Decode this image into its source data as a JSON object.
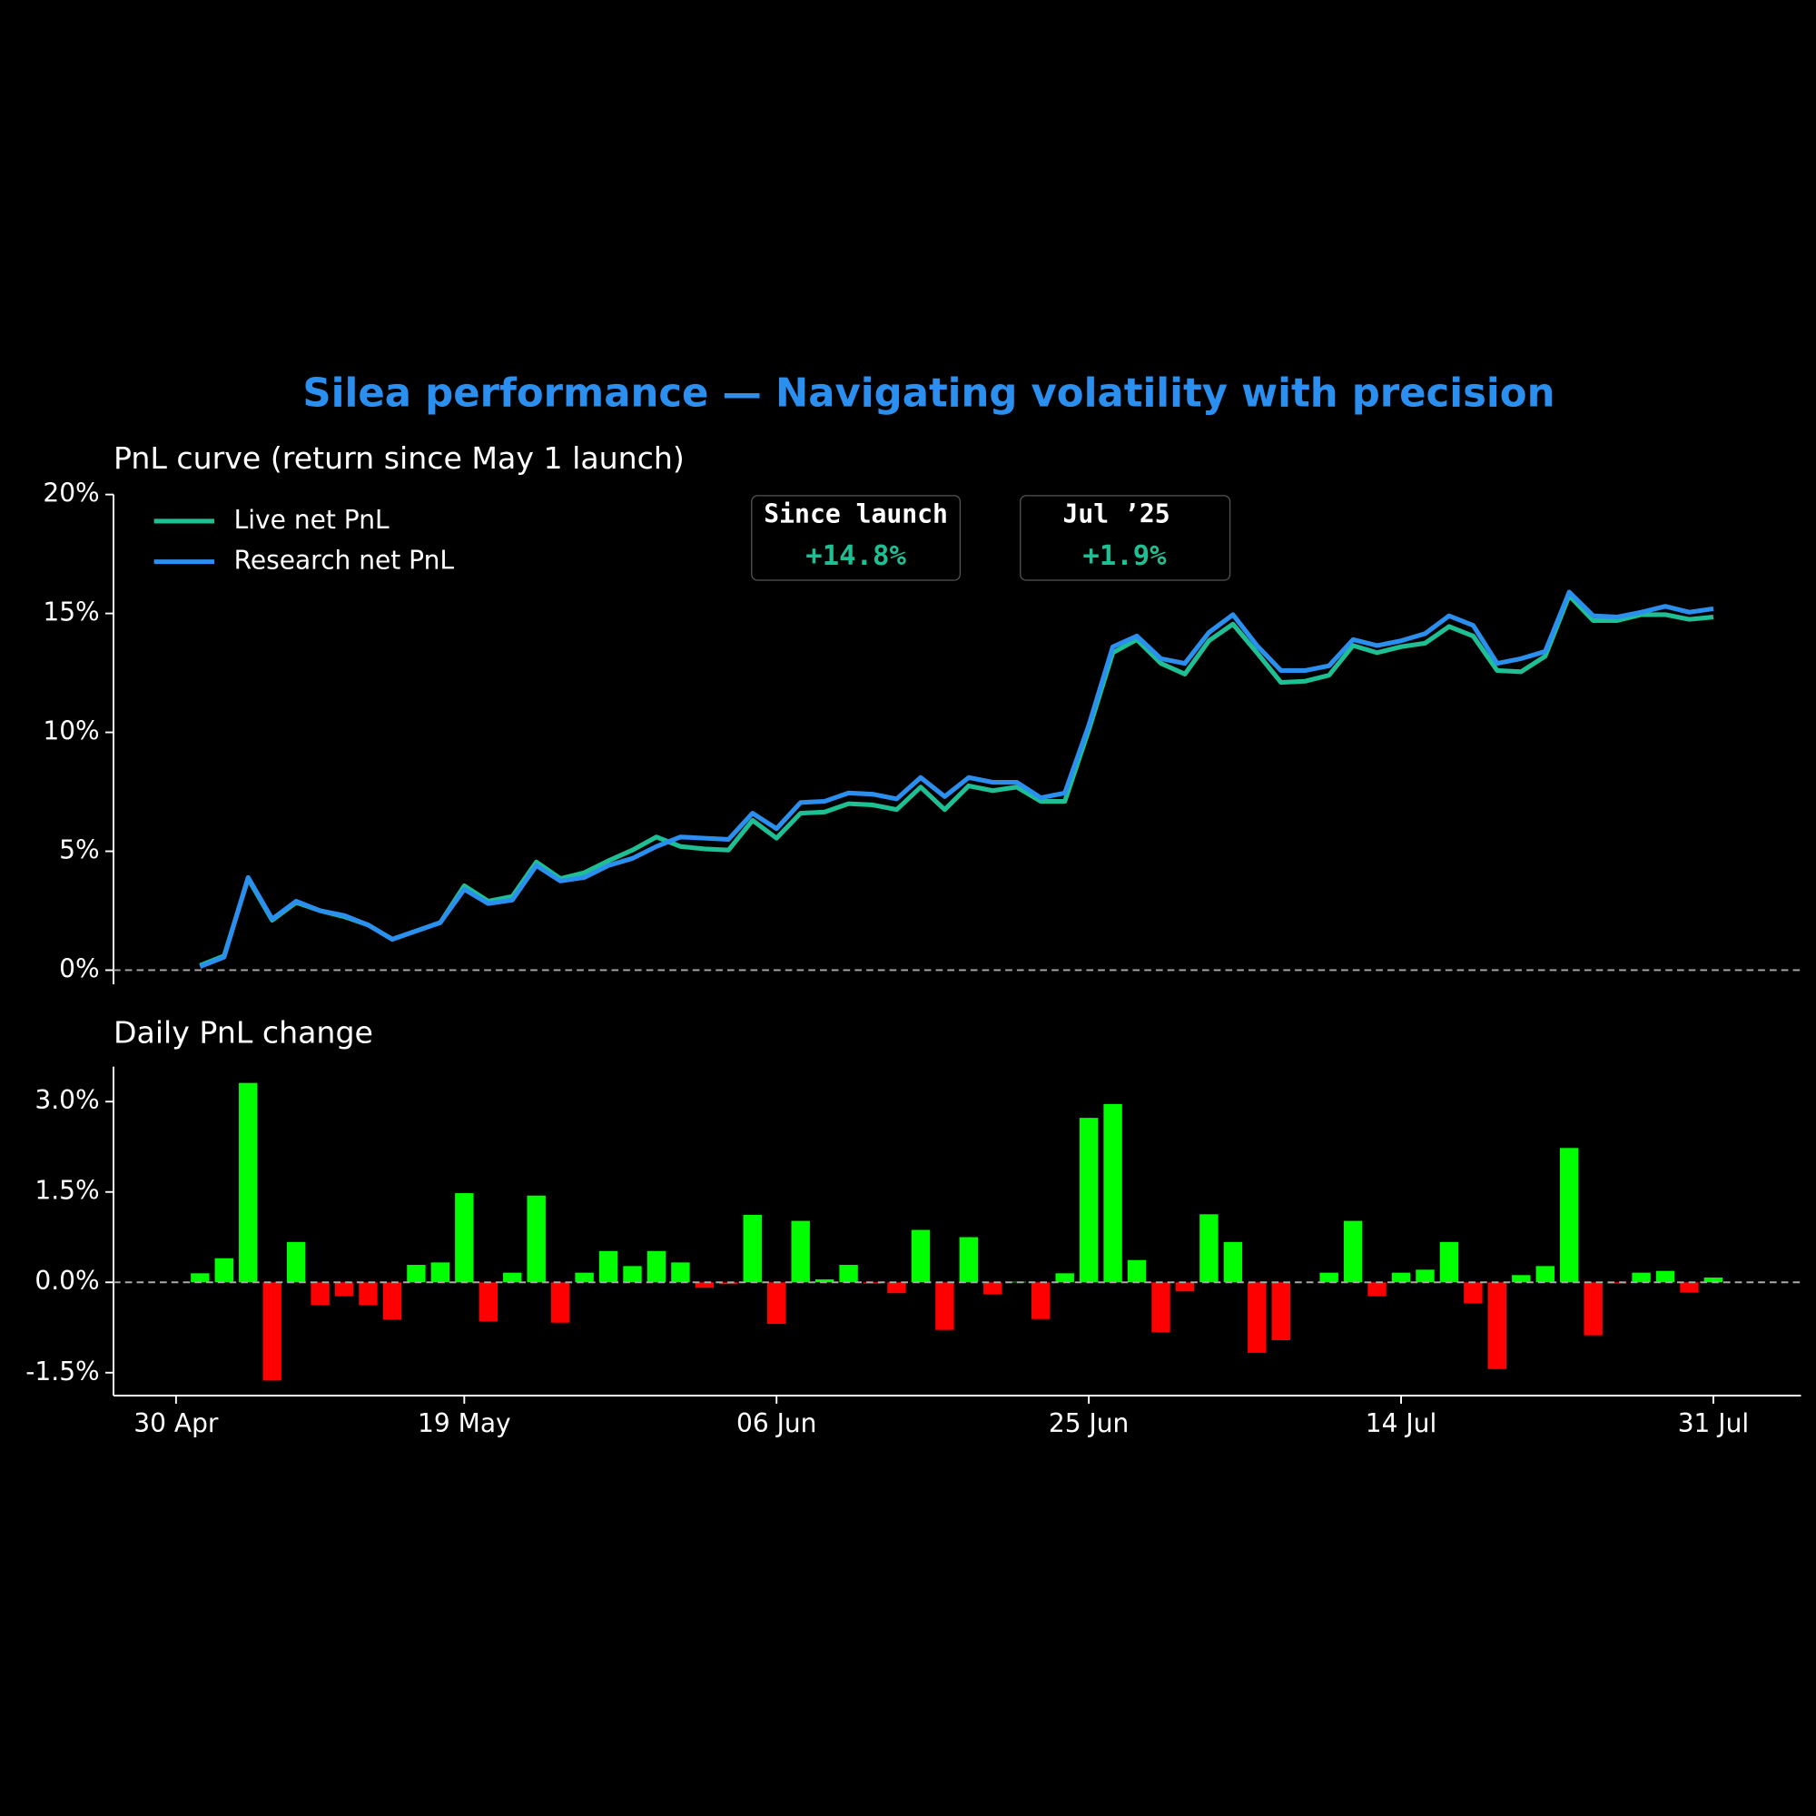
{
  "title": "Silea performance — Navigating volatility with precision",
  "chart_data": [
    {
      "type": "line",
      "title": "PnL curve (return since May 1 launch)",
      "ylim": [
        -0.6,
        20
      ],
      "yticks": [
        {
          "value": 0,
          "label": "0%"
        },
        {
          "value": 5,
          "label": "5%"
        },
        {
          "value": 10,
          "label": "10%"
        },
        {
          "value": 15,
          "label": "15%"
        },
        {
          "value": 20,
          "label": "20%"
        }
      ],
      "zero_line": true,
      "legend": "upper left",
      "annotations": [
        {
          "label": "Since launch",
          "value": "+14.8%"
        },
        {
          "label": "Jul ’25",
          "value": "+1.9%"
        }
      ],
      "series": [
        {
          "name": "Live net PnL",
          "color": "#1fbf94",
          "values": [
            null,
            0.2,
            0.6,
            3.85,
            2.1,
            2.85,
            2.5,
            2.25,
            1.9,
            1.3,
            1.65,
            2.0,
            3.55,
            2.9,
            3.1,
            4.55,
            3.85,
            4.1,
            4.6,
            5.05,
            5.6,
            5.2,
            5.1,
            5.05,
            6.3,
            5.55,
            6.6,
            6.65,
            7.0,
            6.95,
            6.75,
            7.7,
            6.75,
            7.75,
            7.55,
            7.7,
            7.1,
            7.1,
            10.1,
            13.35,
            13.9,
            12.9,
            12.45,
            13.85,
            14.55,
            13.35,
            12.1,
            12.15,
            12.4,
            13.65,
            13.35,
            13.6,
            13.75,
            14.45,
            14.05,
            12.6,
            12.55,
            13.2,
            15.75,
            14.7,
            14.7,
            14.95,
            14.95,
            14.75,
            14.85
          ]
        },
        {
          "name": "Research net PnL",
          "color": "#2b8ff0",
          "values": [
            null,
            0.15,
            0.55,
            3.9,
            2.15,
            2.9,
            2.5,
            2.3,
            1.9,
            1.3,
            1.65,
            2.0,
            3.4,
            2.8,
            2.95,
            4.4,
            3.75,
            3.9,
            4.4,
            4.7,
            5.2,
            5.6,
            5.55,
            5.5,
            6.6,
            5.95,
            7.05,
            7.1,
            7.45,
            7.4,
            7.2,
            8.1,
            7.3,
            8.1,
            7.9,
            7.9,
            7.25,
            7.45,
            10.3,
            13.6,
            14.05,
            13.1,
            12.9,
            14.2,
            14.95,
            13.65,
            12.6,
            12.6,
            12.8,
            13.9,
            13.65,
            13.85,
            14.15,
            14.9,
            14.5,
            12.9,
            13.1,
            13.4,
            15.9,
            14.9,
            14.85,
            15.05,
            15.3,
            15.05,
            15.2
          ]
        }
      ]
    },
    {
      "type": "bar",
      "title": "Daily PnL change",
      "categories": [
        "30 Apr",
        null,
        null,
        null,
        null,
        null,
        null,
        null,
        null,
        null,
        null,
        null,
        "19 May",
        null,
        null,
        null,
        null,
        null,
        null,
        null,
        null,
        null,
        null,
        null,
        null,
        "06 Jun",
        null,
        null,
        null,
        null,
        null,
        null,
        null,
        null,
        null,
        null,
        null,
        null,
        "25 Jun",
        null,
        null,
        null,
        null,
        null,
        null,
        null,
        null,
        null,
        null,
        null,
        null,
        "14 Jul",
        null,
        null,
        null,
        null,
        null,
        null,
        null,
        null,
        null,
        null,
        null,
        null,
        "31 Jul"
      ],
      "values": [
        null,
        0.15,
        0.4,
        3.31,
        -1.63,
        0.67,
        -0.38,
        -0.23,
        -0.38,
        -0.62,
        0.29,
        0.33,
        1.48,
        -0.65,
        0.16,
        1.44,
        -0.67,
        0.16,
        0.52,
        0.27,
        0.52,
        0.33,
        -0.09,
        -0.03,
        1.12,
        -0.69,
        1.02,
        0.05,
        0.29,
        -0.02,
        -0.18,
        0.87,
        -0.79,
        0.75,
        -0.2,
        0.01,
        -0.61,
        0.15,
        2.73,
        2.96,
        0.37,
        -0.83,
        -0.15,
        1.13,
        0.67,
        -1.17,
        -0.96,
        0.0,
        0.16,
        1.02,
        -0.23,
        0.16,
        0.21,
        0.67,
        -0.35,
        -1.44,
        0.12,
        0.27,
        2.23,
        -0.88,
        -0.02,
        0.16,
        0.19,
        -0.17,
        0.08
      ],
      "positive_color": "#00ff00",
      "negative_color": "#ff0000",
      "ylim": [
        -1.88,
        3.58
      ],
      "yticks": [
        {
          "value": -1.5,
          "label": "-1.5%"
        },
        {
          "value": 0,
          "label": "0.0%"
        },
        {
          "value": 1.5,
          "label": "1.5%"
        },
        {
          "value": 3,
          "label": "3.0%"
        }
      ],
      "zero_line": true
    }
  ]
}
